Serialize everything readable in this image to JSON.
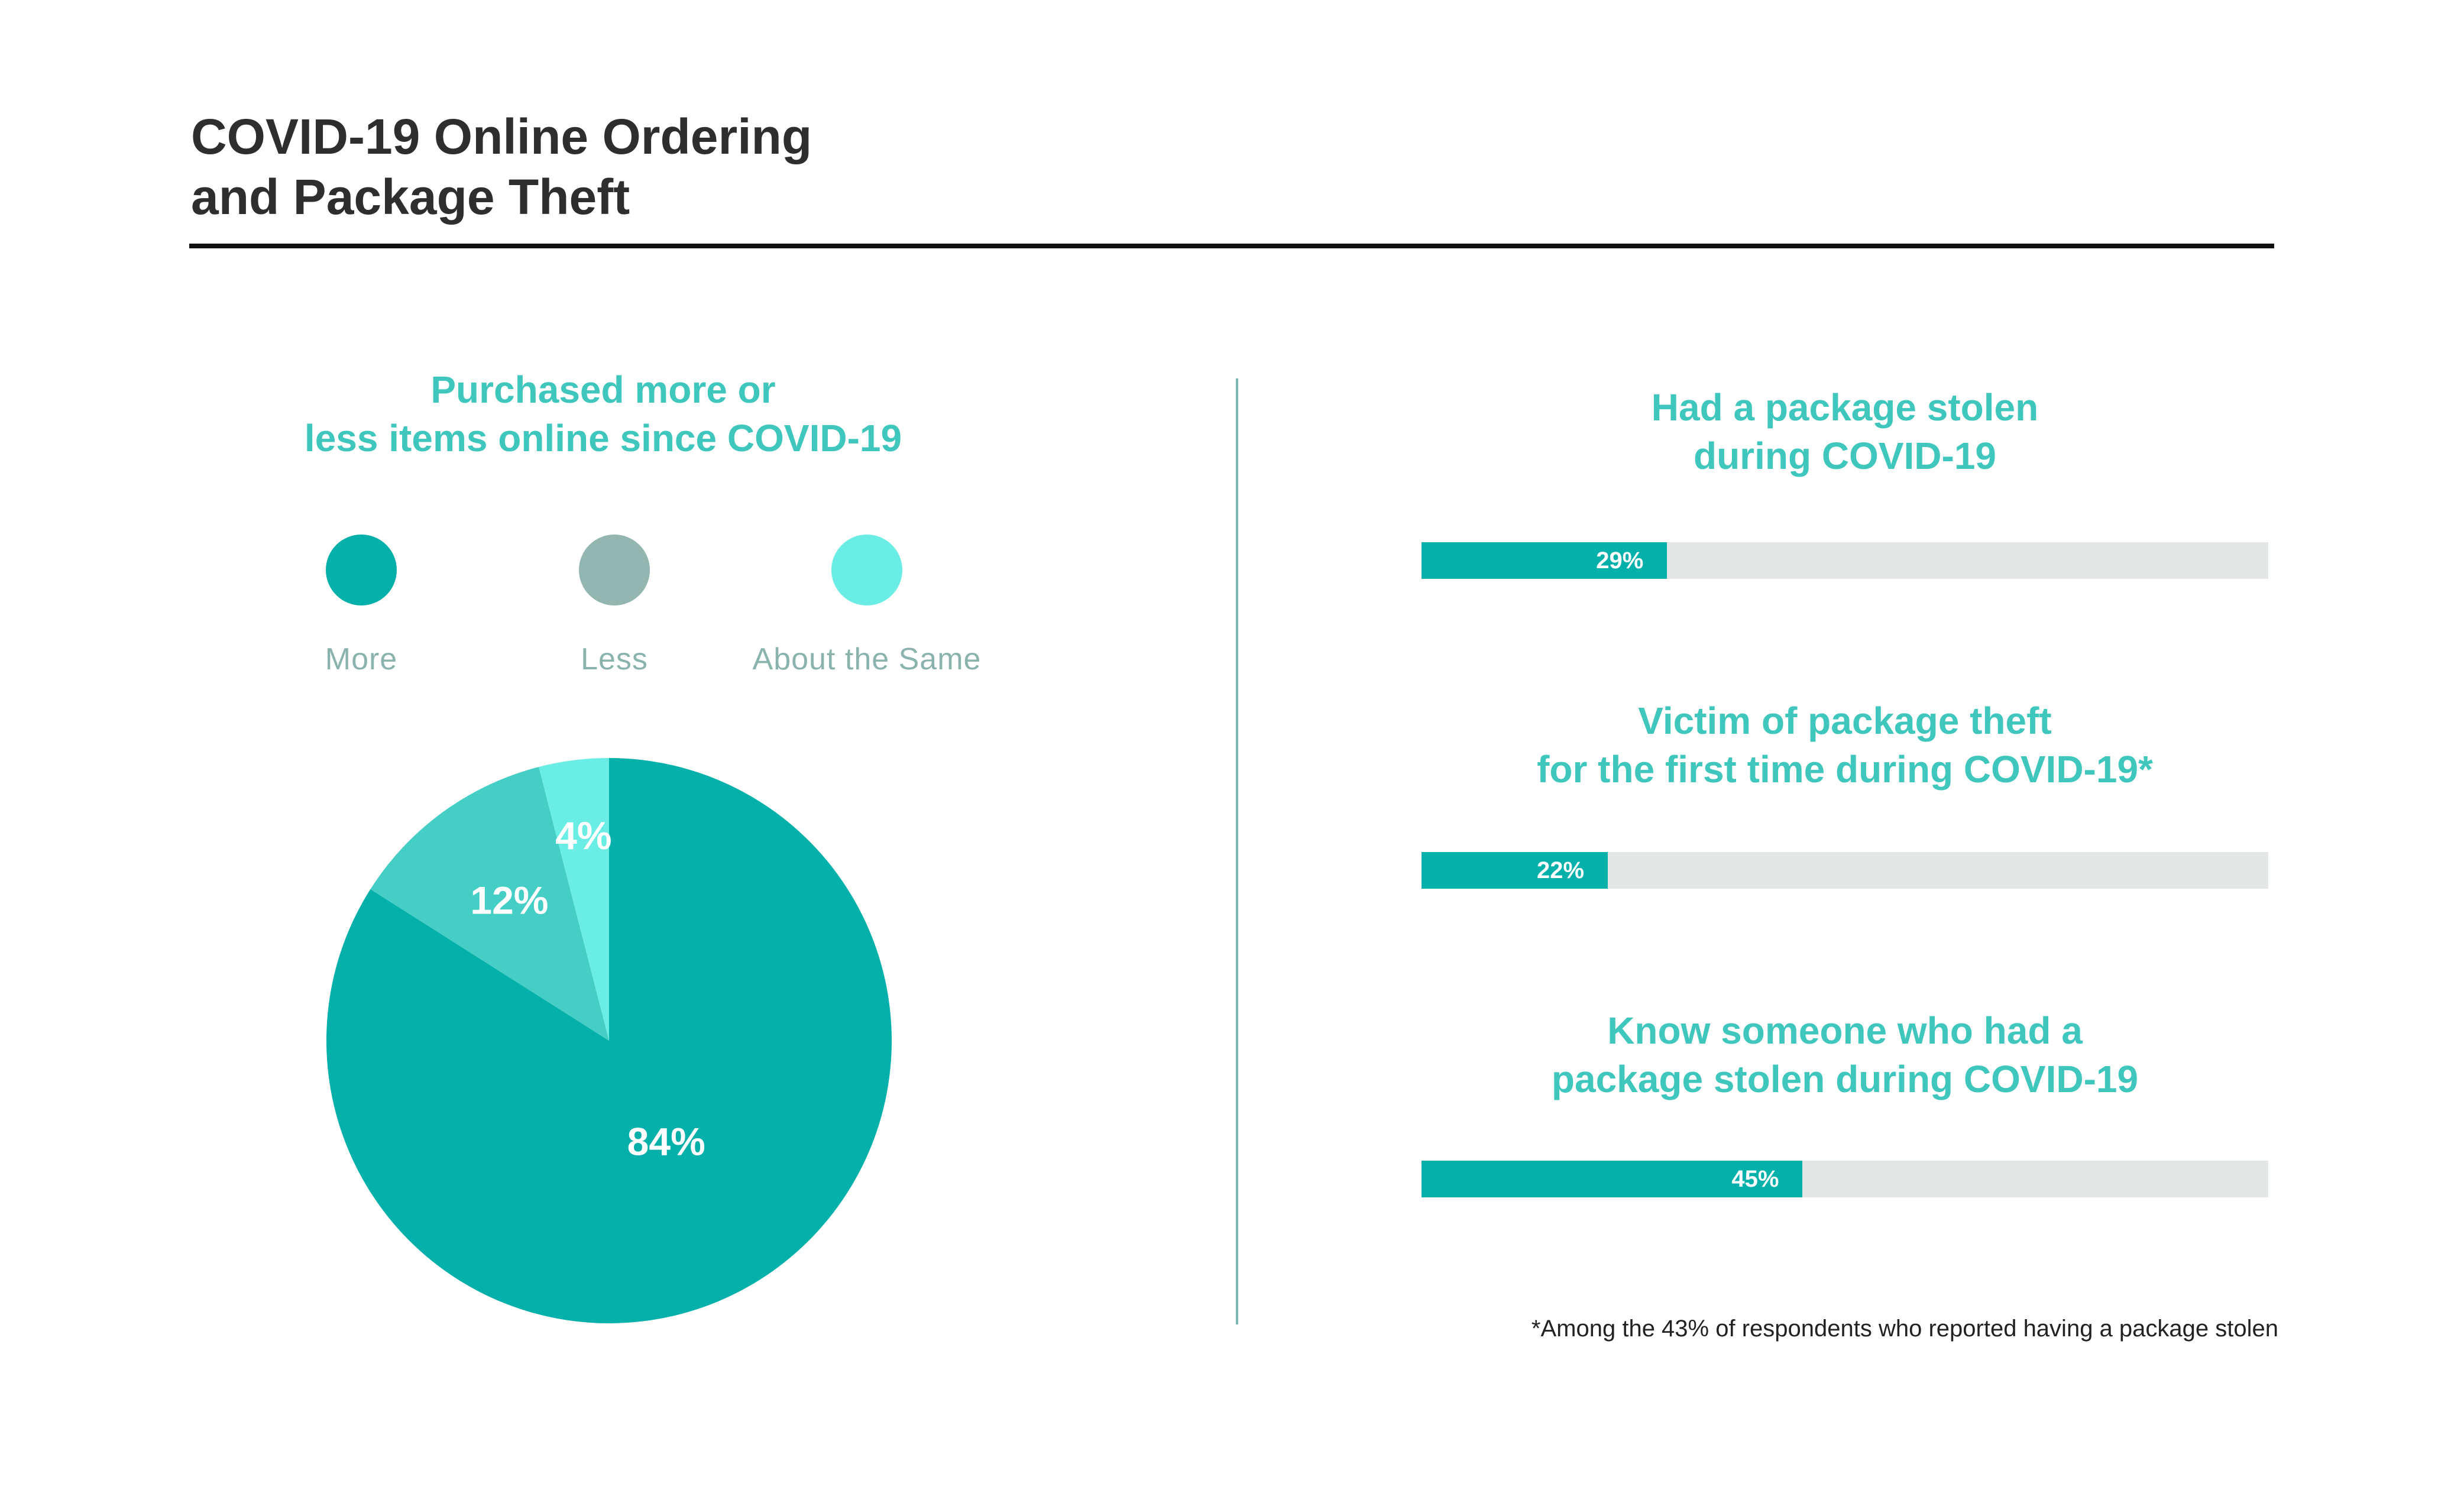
{
  "header": {
    "title_line1": "COVID-19 Online Ordering",
    "title_line2": "and Package Theft"
  },
  "pie_section": {
    "title_line1": "Purchased more or",
    "title_line2": "less items online since COVID-19",
    "legend": [
      {
        "label": "More",
        "color": "#03b0aa"
      },
      {
        "label": "Less",
        "color": "#93b6b1"
      },
      {
        "label": "About the Same",
        "color": "#69ede4"
      }
    ]
  },
  "bars_section": {
    "items": [
      {
        "title_line1": "Had a package stolen",
        "title_line2": "during COVID-19",
        "value": 29,
        "label": "29%"
      },
      {
        "title_line1": "Victim of package theft",
        "title_line2": "for the first time during COVID-19*",
        "value": 22,
        "label": "22%"
      },
      {
        "title_line1": "Know someone who had a",
        "title_line2": "package stolen during COVID-19",
        "value": 45,
        "label": "45%"
      }
    ],
    "footnote": "*Among the 43% of respondents who reported having a package stolen"
  },
  "colors": {
    "accent": "#03b0aa",
    "heading_teal": "#3fc6bd",
    "track": "#e3e8e7",
    "slice_more": "#03b0aa",
    "slice_less": "#45cec5",
    "slice_same": "#69ede4"
  },
  "chart_data": [
    {
      "type": "pie",
      "title": "Purchased more or less items online since COVID-19",
      "categories": [
        "More",
        "Less",
        "About the Same"
      ],
      "values": [
        84,
        12,
        4
      ],
      "labels": [
        "84%",
        "12%",
        "4%"
      ],
      "legend": "top"
    },
    {
      "type": "bar",
      "orientation": "horizontal",
      "categories": [
        "Had a package stolen during COVID-19",
        "Victim of package theft for the first time during COVID-19*",
        "Know someone who had a package stolen during COVID-19"
      ],
      "values": [
        29,
        22,
        45
      ],
      "labels": [
        "29%",
        "22%",
        "45%"
      ],
      "xlim": [
        0,
        100
      ]
    }
  ]
}
